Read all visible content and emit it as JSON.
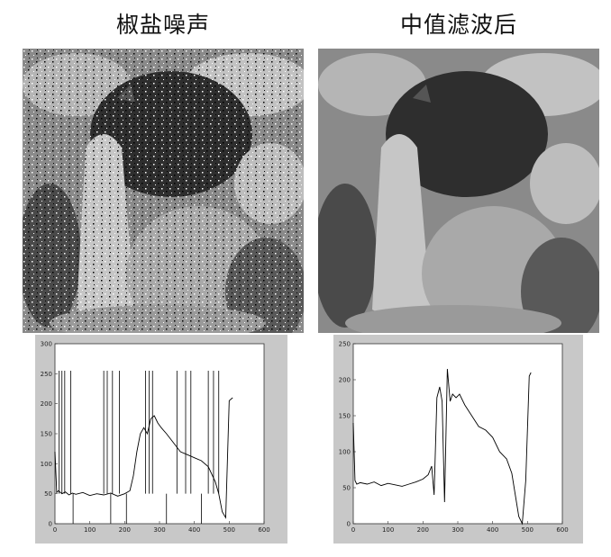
{
  "panels": {
    "left_title": "椒盐噪声",
    "right_title": "中值滤波后"
  },
  "chart_data": [
    {
      "type": "line",
      "ylim": [
        0,
        300
      ],
      "xlim": [
        0,
        600
      ],
      "x_ticks": [
        "0",
        "100",
        "200",
        "300",
        "400",
        "500",
        "600"
      ],
      "y_ticks": [
        "0",
        "50",
        "100",
        "150",
        "200",
        "250",
        "300"
      ],
      "grid": false,
      "x": [
        0,
        5,
        10,
        20,
        30,
        40,
        50,
        60,
        80,
        100,
        120,
        140,
        160,
        180,
        200,
        215,
        225,
        235,
        245,
        255,
        265,
        275,
        285,
        295,
        305,
        320,
        340,
        360,
        380,
        400,
        420,
        440,
        460,
        470,
        480,
        490,
        500,
        510
      ],
      "values": [
        120,
        52,
        55,
        50,
        53,
        48,
        51,
        49,
        52,
        47,
        50,
        48,
        51,
        46,
        50,
        55,
        80,
        120,
        150,
        160,
        150,
        175,
        180,
        168,
        160,
        150,
        135,
        120,
        115,
        110,
        105,
        95,
        70,
        50,
        20,
        10,
        205,
        210
      ],
      "impulse_x": [
        12,
        20,
        28,
        45,
        52,
        140,
        150,
        160,
        165,
        185,
        205,
        260,
        270,
        280,
        320,
        350,
        375,
        390,
        420,
        440,
        455,
        470
      ],
      "impulse_y": [
        255,
        255,
        255,
        255,
        0,
        255,
        255,
        0,
        255,
        255,
        0,
        255,
        255,
        255,
        0,
        255,
        255,
        255,
        0,
        255,
        255,
        255
      ]
    },
    {
      "type": "line",
      "ylim": [
        0,
        250
      ],
      "xlim": [
        0,
        600
      ],
      "x_ticks": [
        "0",
        "100",
        "200",
        "300",
        "400",
        "500",
        "600"
      ],
      "y_ticks": [
        "0",
        "50",
        "100",
        "150",
        "200",
        "250"
      ],
      "grid": false,
      "x": [
        0,
        5,
        10,
        20,
        40,
        60,
        80,
        100,
        120,
        140,
        160,
        180,
        200,
        215,
        225,
        232,
        240,
        248,
        255,
        262,
        270,
        278,
        285,
        295,
        305,
        320,
        340,
        360,
        380,
        400,
        420,
        440,
        455,
        465,
        475,
        485,
        495,
        505,
        510
      ],
      "values": [
        140,
        60,
        55,
        57,
        55,
        58,
        53,
        56,
        54,
        52,
        55,
        58,
        62,
        68,
        80,
        40,
        175,
        190,
        170,
        30,
        215,
        170,
        180,
        175,
        180,
        165,
        150,
        135,
        130,
        120,
        100,
        90,
        70,
        40,
        10,
        0,
        60,
        205,
        210
      ]
    }
  ]
}
